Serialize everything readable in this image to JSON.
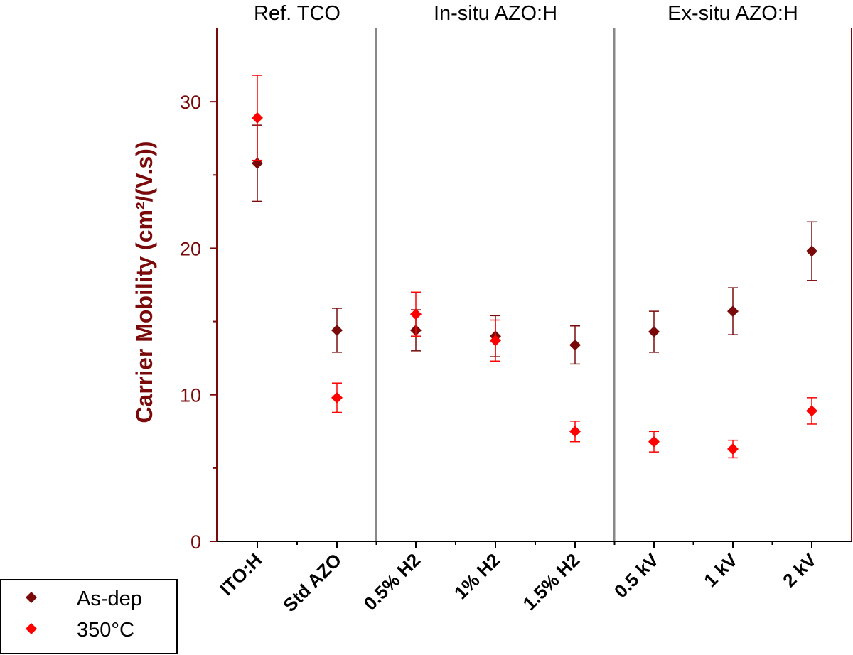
{
  "chart_data": {
    "type": "scatter",
    "title": "",
    "xlabel": "",
    "ylabel": "Carrier Mobility (cm²/(V.s))",
    "ylim": [
      0,
      35
    ],
    "yticks": [
      0,
      10,
      20,
      30
    ],
    "categories": [
      "ITO:H",
      "Std AZO",
      "0.5% H2",
      "1% H2",
      "1.5% H2",
      "0.5 kV",
      "1 kV",
      "2 kV"
    ],
    "groups": [
      {
        "label": "Ref. TCO",
        "categories": [
          "ITO:H",
          "Std AZO"
        ]
      },
      {
        "label": "In-situ AZO:H",
        "categories": [
          "0.5% H2",
          "1% H2",
          "1.5% H2"
        ]
      },
      {
        "label": "Ex-situ AZO:H",
        "categories": [
          "0.5 kV",
          "1 kV",
          "2 kV"
        ]
      }
    ],
    "series": [
      {
        "name": "As-dep",
        "color": "#7a0a0a",
        "values": [
          25.8,
          14.4,
          14.4,
          14.0,
          13.4,
          14.3,
          15.7,
          19.8
        ],
        "errors": [
          2.6,
          1.5,
          1.4,
          1.4,
          1.3,
          1.4,
          1.6,
          2.0
        ]
      },
      {
        "name": "350°C",
        "color": "#ff0000",
        "values": [
          28.9,
          9.8,
          15.5,
          13.7,
          7.5,
          6.8,
          6.3,
          8.9
        ],
        "errors": [
          2.9,
          1.0,
          1.5,
          1.4,
          0.7,
          0.7,
          0.6,
          0.9
        ]
      }
    ],
    "legend_position": "bottom-left"
  }
}
